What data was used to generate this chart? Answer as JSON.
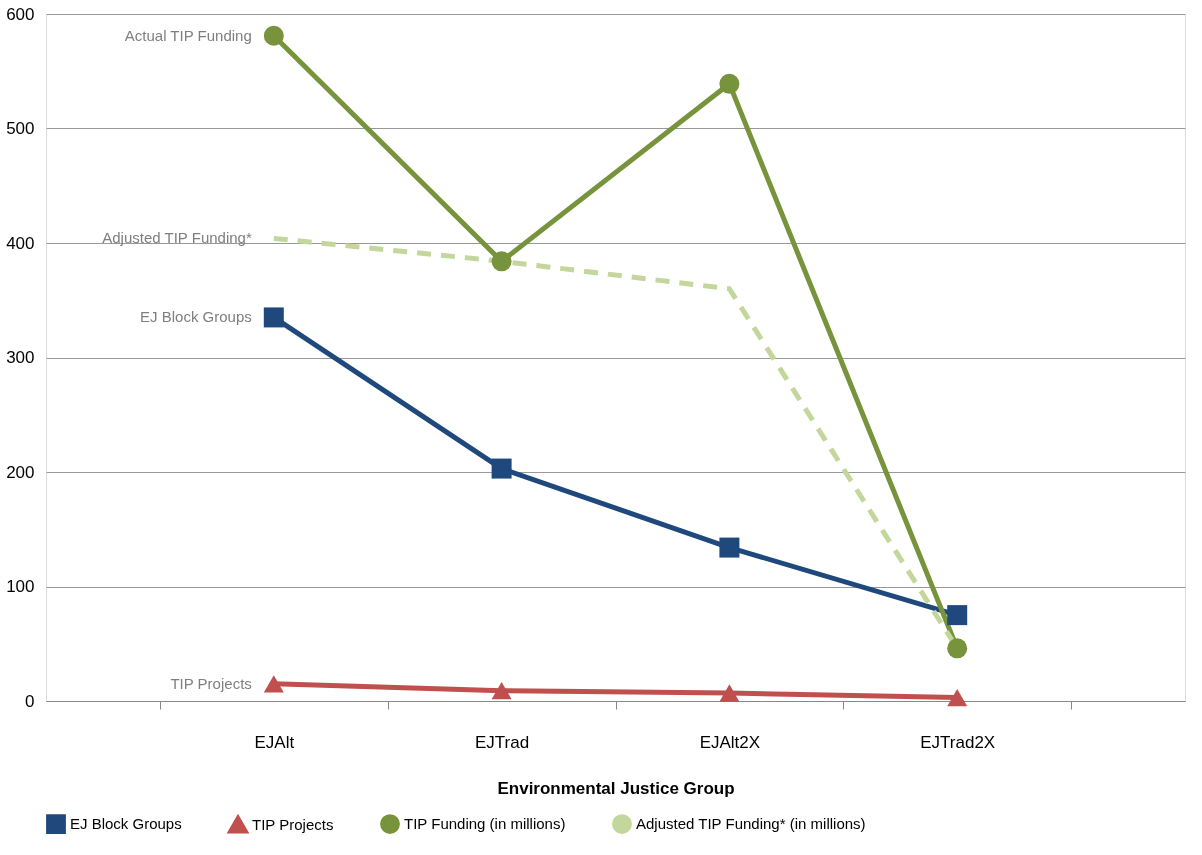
{
  "chart_data": {
    "type": "line",
    "xlabel": "Environmental Justice Group",
    "categories": [
      "EJAlt",
      "EJTrad",
      "EJAlt2X",
      "EJTrad2X"
    ],
    "series": [
      {
        "name": "EJ Block Groups",
        "color": "#1f497d",
        "marker": "square",
        "line_style": "solid",
        "values": [
          335,
          203,
          134,
          75
        ]
      },
      {
        "name": "TIP Projects",
        "color": "#c0504d",
        "marker": "triangle",
        "line_style": "solid",
        "values": [
          15,
          9,
          7,
          3
        ]
      },
      {
        "name": "TIP Funding (in millions)",
        "color": "#77933c",
        "marker": "circle",
        "line_style": "solid",
        "values": [
          581,
          384,
          539,
          46
        ]
      },
      {
        "name": "Adjusted TIP Funding* (in millions)",
        "color": "#c3d69b",
        "marker": "none",
        "line_style": "dashed",
        "values": [
          404,
          384,
          360,
          46
        ]
      }
    ],
    "ylim": [
      0,
      600
    ],
    "yticks": [
      0,
      100,
      200,
      300,
      400,
      500,
      600
    ],
    "grid": "y",
    "legend": "bottom",
    "annotations": [
      {
        "text": "Actual TIP Funding",
        "x": "EJAlt",
        "y": 581
      },
      {
        "text": "Adjusted TIP Funding*",
        "x": "EJAlt",
        "y": 404
      },
      {
        "text": "EJ Block Groups",
        "x": "EJAlt",
        "y": 335
      },
      {
        "text": "TIP Projects",
        "x": "EJAlt",
        "y": 15
      }
    ]
  }
}
